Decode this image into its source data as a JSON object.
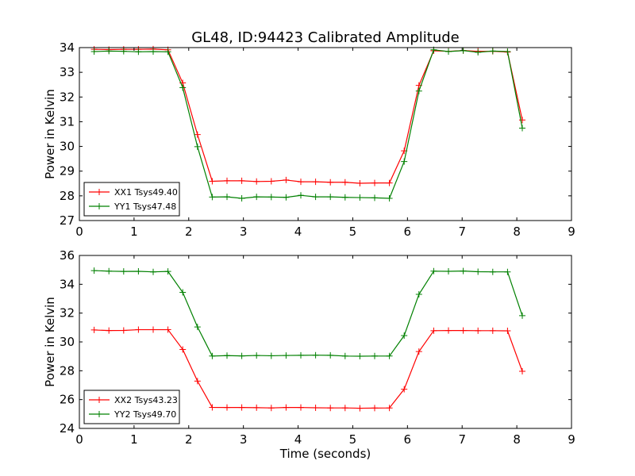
{
  "chart_data": [
    {
      "type": "line",
      "title": "GL48, ID:94423 Calibrated Amplitude",
      "xlabel": "",
      "ylabel": "Power in Kelvin",
      "xlim": [
        0,
        9
      ],
      "ylim": [
        27,
        34
      ],
      "xticks": [
        "0",
        "1",
        "2",
        "3",
        "4",
        "5",
        "6",
        "7",
        "8",
        "9"
      ],
      "yticks": [
        "27",
        "28",
        "29",
        "30",
        "31",
        "32",
        "33",
        "34"
      ],
      "grid": false,
      "legend": "lower-left",
      "x": [
        0.27,
        0.54,
        0.81,
        1.08,
        1.35,
        1.62,
        1.89,
        2.16,
        2.43,
        2.7,
        2.97,
        3.24,
        3.51,
        3.78,
        4.05,
        4.32,
        4.59,
        4.86,
        5.13,
        5.4,
        5.67,
        5.94,
        6.21,
        6.48,
        6.75,
        7.02,
        7.29,
        7.56,
        7.83,
        8.1
      ],
      "series": [
        {
          "name": "XX1 Tsys49.40",
          "color": "#ff0000",
          "values": [
            33.93,
            33.92,
            33.93,
            33.93,
            33.94,
            33.91,
            32.57,
            30.48,
            28.59,
            28.61,
            28.61,
            28.58,
            28.59,
            28.64,
            28.57,
            28.57,
            28.55,
            28.55,
            28.51,
            28.52,
            28.52,
            29.82,
            32.47,
            33.87,
            33.85,
            33.88,
            33.85,
            33.85,
            33.82,
            31.07
          ]
        },
        {
          "name": "YY1 Tsys47.48",
          "color": "#008000",
          "values": [
            33.84,
            33.86,
            33.85,
            33.83,
            33.84,
            33.83,
            32.38,
            29.99,
            27.95,
            27.96,
            27.9,
            27.96,
            27.95,
            27.94,
            28.02,
            27.96,
            27.96,
            27.94,
            27.93,
            27.92,
            27.9,
            29.39,
            32.24,
            33.91,
            33.84,
            33.88,
            33.81,
            33.86,
            33.84,
            30.74
          ]
        }
      ]
    },
    {
      "type": "line",
      "title": "",
      "xlabel": "Time (seconds)",
      "ylabel": "Power in Kelvin",
      "xlim": [
        0,
        9
      ],
      "ylim": [
        24,
        36
      ],
      "xticks": [
        "0",
        "1",
        "2",
        "3",
        "4",
        "5",
        "6",
        "7",
        "8",
        "9"
      ],
      "yticks": [
        "24",
        "26",
        "28",
        "30",
        "32",
        "34",
        "36"
      ],
      "grid": false,
      "legend": "lower-left",
      "x": [
        0.27,
        0.54,
        0.81,
        1.08,
        1.35,
        1.62,
        1.89,
        2.16,
        2.43,
        2.7,
        2.97,
        3.24,
        3.51,
        3.78,
        4.05,
        4.32,
        4.59,
        4.86,
        5.13,
        5.4,
        5.67,
        5.94,
        6.21,
        6.48,
        6.75,
        7.02,
        7.29,
        7.56,
        7.83,
        8.1
      ],
      "series": [
        {
          "name": "XX2 Tsys43.23",
          "color": "#ff0000",
          "values": [
            30.83,
            30.79,
            30.8,
            30.85,
            30.85,
            30.85,
            29.48,
            27.28,
            25.46,
            25.45,
            25.45,
            25.44,
            25.42,
            25.45,
            25.45,
            25.43,
            25.42,
            25.42,
            25.4,
            25.41,
            25.42,
            26.72,
            29.33,
            30.78,
            30.79,
            30.79,
            30.78,
            30.78,
            30.77,
            27.96
          ]
        },
        {
          "name": "YY2 Tsys49.70",
          "color": "#008000",
          "values": [
            34.95,
            34.91,
            34.89,
            34.9,
            34.86,
            34.89,
            33.44,
            31.04,
            29.02,
            29.05,
            29.03,
            29.06,
            29.04,
            29.06,
            29.07,
            29.08,
            29.07,
            29.02,
            29.01,
            29.02,
            29.02,
            30.44,
            33.3,
            34.91,
            34.9,
            34.92,
            34.87,
            34.86,
            34.86,
            31.82
          ]
        }
      ]
    }
  ]
}
